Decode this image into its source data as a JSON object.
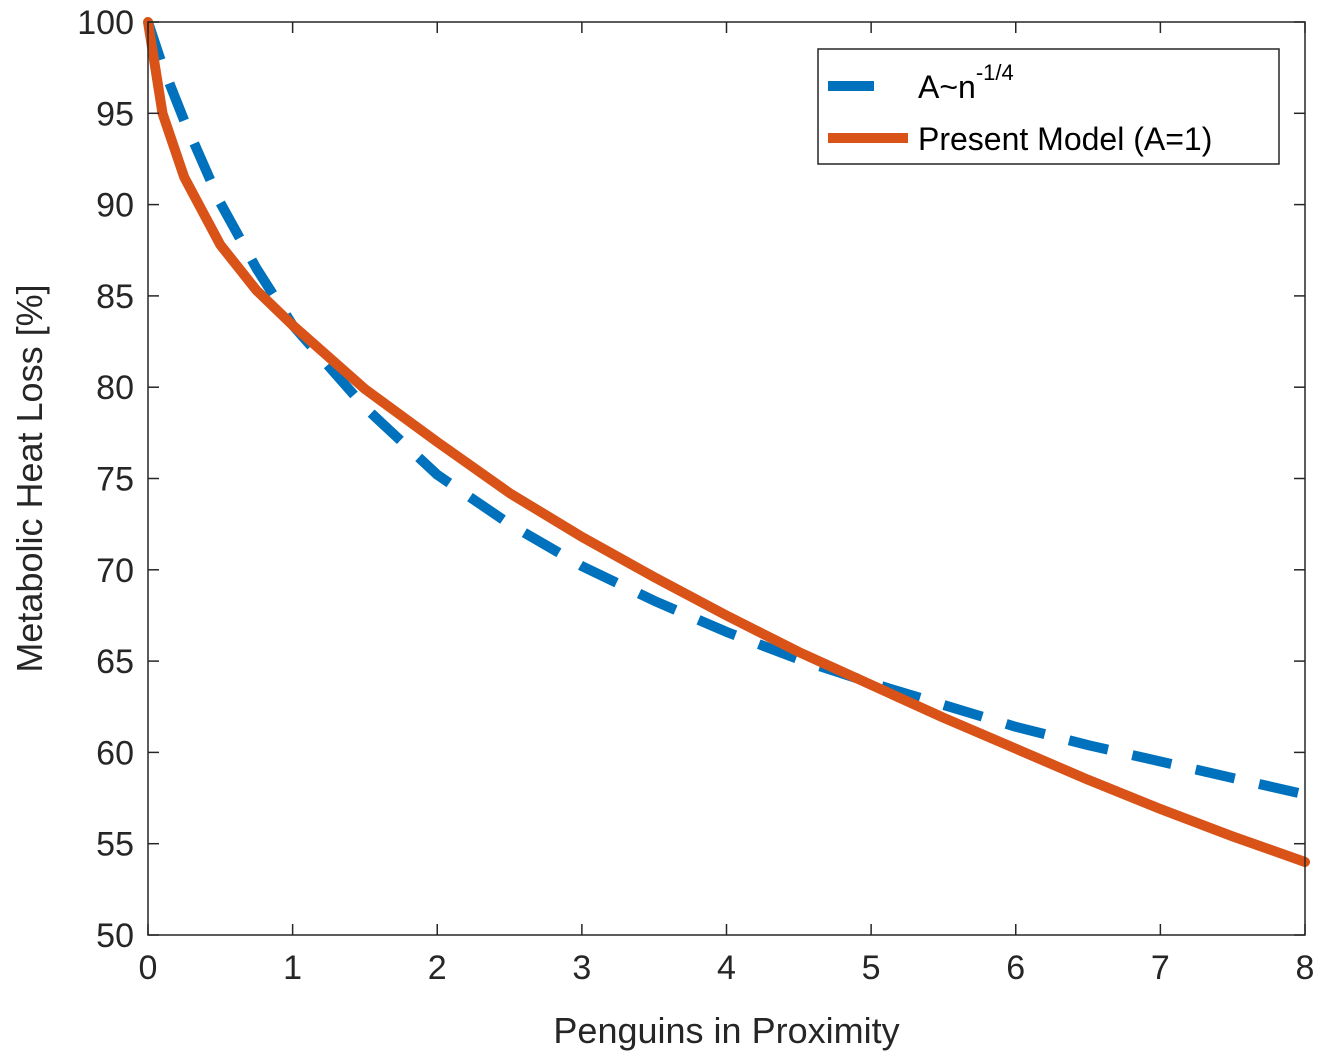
{
  "chart_data": {
    "type": "line",
    "xlabel": "Penguins in Proximity",
    "ylabel": "Metabolic Heat Loss [%]",
    "xlim": [
      0,
      8
    ],
    "ylim": [
      50,
      100
    ],
    "xticks": [
      "0",
      "1",
      "2",
      "3",
      "4",
      "5",
      "6",
      "7",
      "8"
    ],
    "yticks": [
      "50",
      "55",
      "60",
      "65",
      "70",
      "75",
      "80",
      "85",
      "90",
      "95",
      "100"
    ],
    "grid": false,
    "legend_position": "top-right",
    "series": [
      {
        "name": "A~n",
        "name_superscript": "-1/4",
        "color": "#0072BD",
        "style": "dashed",
        "x": [
          0,
          0.1,
          0.25,
          0.5,
          0.75,
          1,
          1.5,
          2,
          2.5,
          3,
          3.5,
          4,
          4.5,
          5,
          5.5,
          6,
          6.5,
          7,
          7.5,
          8
        ],
        "y": [
          100,
          97.6,
          94.6,
          90.1,
          86.5,
          83.4,
          78.9,
          75.2,
          72.5,
          70.2,
          68.3,
          66.6,
          65.1,
          63.8,
          62.6,
          61.4,
          60.4,
          59.5,
          58.6,
          57.7
        ]
      },
      {
        "name": "Present Model (A=1)",
        "color": "#D95319",
        "style": "solid",
        "x": [
          0,
          0.1,
          0.25,
          0.5,
          0.75,
          1,
          1.5,
          2,
          2.5,
          3,
          3.5,
          4,
          4.5,
          5,
          5.5,
          6,
          6.5,
          7,
          7.5,
          8
        ],
        "y": [
          100,
          95,
          91.5,
          87.8,
          85.3,
          83.4,
          79.9,
          77.0,
          74.2,
          71.8,
          69.6,
          67.5,
          65.5,
          63.7,
          61.9,
          60.2,
          58.5,
          56.9,
          55.4,
          54.0
        ]
      }
    ]
  }
}
